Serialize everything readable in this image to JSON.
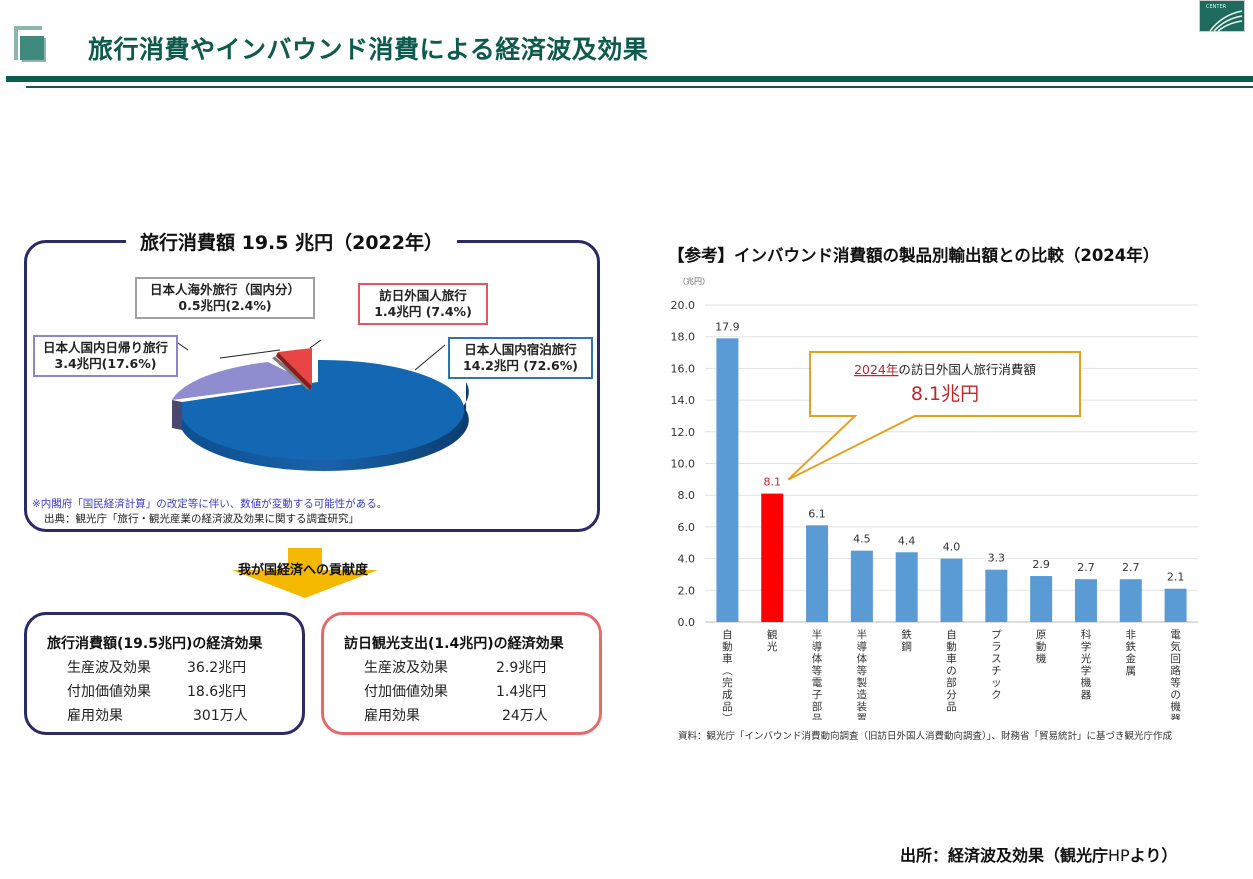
{
  "header": {
    "title": "旅行消費やインバウンド消費による経済波及効果",
    "logo_text": "CENTER",
    "accent_color": "#0b5d50"
  },
  "travel_consumption": {
    "title": "旅行消費額  19.5 兆円（2022年）",
    "segments": [
      {
        "name": "日本人国内宿泊旅行",
        "value_text": "14.2兆円 (72.6%)",
        "value": 14.2,
        "percent": 72.6,
        "color": "#1467b3"
      },
      {
        "name": "日本人国内日帰り旅行",
        "value_text": "3.4兆円(17.6%)",
        "value": 3.4,
        "percent": 17.6,
        "color": "#8f8cd0"
      },
      {
        "name": "日本人海外旅行（国内分）",
        "value_text": "0.5兆円(2.4%)",
        "value": 0.5,
        "percent": 2.4,
        "color": "#8a8a8a"
      },
      {
        "name": "訪日外国人旅行",
        "value_text": "1.4兆円 (7.4%)",
        "value": 1.4,
        "percent": 7.4,
        "color": "#e84545"
      }
    ],
    "note": "※内閣府「国民経済計算」の改定等に伴い、数値が変動する可能性がある。",
    "source": "出典：観光庁「旅行・観光産業の経済波及効果に関する調査研究」"
  },
  "arrow_label": "我が国経済への貢献度",
  "effects": [
    {
      "title": "旅行消費額(19.5兆円)の経済効果",
      "rows": [
        {
          "label": "生産波及効果",
          "value": "36.2兆円"
        },
        {
          "label": "付加価値効果",
          "value": "18.6兆円"
        },
        {
          "label": "雇用効果",
          "value": "301万人"
        }
      ]
    },
    {
      "title": "訪日観光支出(1.4兆円)の経済効果",
      "rows": [
        {
          "label": "生産波及効果",
          "value": "2.9兆円"
        },
        {
          "label": "付加価値効果",
          "value": "1.4兆円"
        },
        {
          "label": "雇用効果",
          "value": "24万人"
        }
      ]
    }
  ],
  "chart_data": {
    "type": "bar",
    "title": "【参考】インバウンド消費額の製品別輸出額との比較（2024年）",
    "ylabel": "（兆円）",
    "xlabel": "",
    "ylim": [
      0,
      20
    ],
    "yticks": [
      "0.0",
      "2.0",
      "4.0",
      "6.0",
      "8.0",
      "10.0",
      "12.0",
      "14.0",
      "16.0",
      "18.0",
      "20.0"
    ],
    "grid": true,
    "categories": [
      "自動車（完成品）",
      "観光",
      "半導体等電子部品",
      "半導体等製造装置",
      "鉄鋼",
      "自動車の部分品",
      "プラスチック",
      "原動機",
      "科学光学機器",
      "非鉄金属",
      "電気回路等の機器"
    ],
    "values": [
      17.9,
      8.1,
      6.1,
      4.5,
      4.4,
      4.0,
      3.3,
      2.9,
      2.7,
      2.7,
      2.1
    ],
    "value_labels": [
      "17.9",
      "8.1",
      "6.1",
      "4.5",
      "4.4",
      "4.0",
      "3.3",
      "2.9",
      "2.7",
      "2.7",
      "2.1"
    ],
    "highlight_index": 1,
    "bar_color": "#5b9bd5",
    "highlight_color": "#ff0000",
    "annotation": {
      "year": "2024年",
      "line1_rest": "の訪日外国人旅行消費額",
      "line2": "8.1兆円"
    },
    "source": "資料：観光庁「インバウンド消費動向調査（旧訪日外国人消費動向調査）」、財務省「貿易統計」に基づき観光庁作成"
  },
  "footer": {
    "label_bold": "出所：経済波及効果（観光庁",
    "label_thin": "HP",
    "label_end": "より）"
  }
}
